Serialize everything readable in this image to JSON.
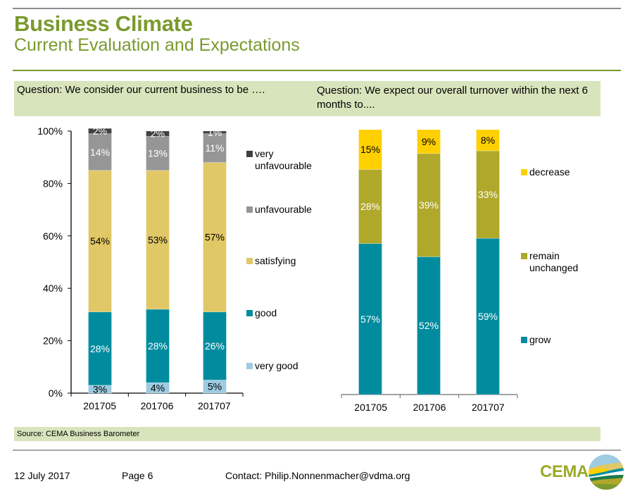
{
  "header": {
    "title": "Business Climate",
    "subtitle": "Current Evaluation and Expectations"
  },
  "questions": {
    "left": "Question: We consider our current business to be ….",
    "right": "Question: We expect our overall turnover within the next 6 months to...."
  },
  "source": "Source: CEMA Business Barometer",
  "footer": {
    "date": "12 July 2017",
    "page": "Page 6",
    "contact": "Contact: Philip.Nonnenmacher@vdma.org",
    "logo_text": "CEMA"
  },
  "chart_data": [
    {
      "type": "bar",
      "stacked": true,
      "title": "Question: We consider our current business to be ….",
      "categories": [
        "201705",
        "201706",
        "201707"
      ],
      "ylim": [
        0,
        100
      ],
      "yticks": [
        "0%",
        "20%",
        "40%",
        "60%",
        "80%",
        "100%"
      ],
      "ytick_values": [
        0,
        20,
        40,
        60,
        80,
        100
      ],
      "legend_position": "right",
      "series": [
        {
          "name": "very good",
          "color": "#9dcbe1",
          "label_color": "#000000",
          "values": [
            3,
            4,
            5
          ]
        },
        {
          "name": "good",
          "color": "#008c9e",
          "label_color": "#ffffff",
          "values": [
            28,
            28,
            26
          ]
        },
        {
          "name": "satisfying",
          "color": "#e1c866",
          "label_color": "#000000",
          "values": [
            54,
            53,
            57
          ]
        },
        {
          "name": "unfavourable",
          "color": "#969696",
          "label_color": "#ffffff",
          "values": [
            14,
            13,
            11
          ]
        },
        {
          "name": "very unfavourable",
          "color": "#404040",
          "label_color": "#ffffff",
          "values": [
            2,
            2,
            1
          ]
        }
      ]
    },
    {
      "type": "bar",
      "stacked": true,
      "title": "Question: We expect our overall turnover within the next 6 months to....",
      "categories": [
        "201705",
        "201706",
        "201707"
      ],
      "ylim": [
        0,
        100
      ],
      "legend_position": "right",
      "series": [
        {
          "name": "grow",
          "color": "#008c9e",
          "label_color": "#ffffff",
          "values": [
            57,
            52,
            59
          ]
        },
        {
          "name": "remain unchanged",
          "color": "#b0a82a",
          "label_color": "#ffffff",
          "values": [
            28,
            39,
            33
          ]
        },
        {
          "name": "decrease",
          "color": "#ffd000",
          "label_color": "#000000",
          "values": [
            15,
            9,
            8
          ]
        }
      ]
    }
  ]
}
